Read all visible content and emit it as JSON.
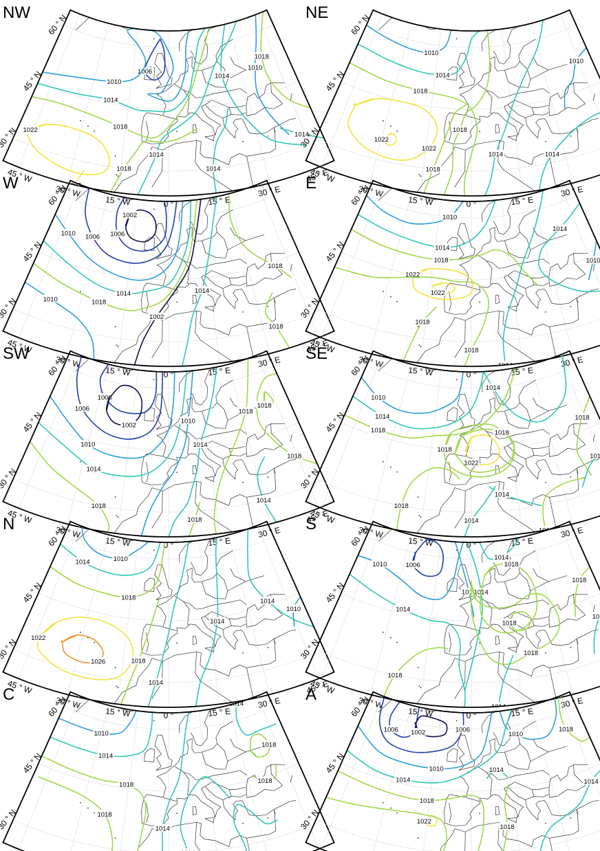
{
  "figure": {
    "panels": [
      {
        "label": "NW",
        "isobars": [
          {
            "text": "1006",
            "value": 1006
          },
          {
            "text": "1010",
            "value": 1010
          },
          {
            "text": "1014",
            "value": 1014
          },
          {
            "text": "1018",
            "value": 1018
          },
          {
            "text": "1022",
            "value": 1022
          },
          {
            "text": "1014",
            "value": 1014
          },
          {
            "text": "1018",
            "value": 1018
          },
          {
            "text": "1010",
            "value": 1010
          },
          {
            "text": "1014",
            "value": 1014
          },
          {
            "text": "1018",
            "value": 1018
          },
          {
            "text": "1014",
            "value": 1014
          },
          {
            "text": "1022",
            "value": 1022
          },
          {
            "text": "1014",
            "value": 1014
          }
        ]
      },
      {
        "label": "NE",
        "isobars": [
          {
            "text": "1010",
            "value": 1010
          },
          {
            "text": "1014",
            "value": 1014
          },
          {
            "text": "1018",
            "value": 1018
          },
          {
            "text": "1022",
            "value": 1022
          },
          {
            "text": "1018",
            "value": 1018
          },
          {
            "text": "1014",
            "value": 1014
          },
          {
            "text": "1010",
            "value": 1010
          },
          {
            "text": "1022",
            "value": 1022
          },
          {
            "text": "1018",
            "value": 1018
          },
          {
            "text": "1014",
            "value": 1014
          }
        ]
      },
      {
        "label": "W",
        "isobars": [
          {
            "text": "1006",
            "value": 1006
          },
          {
            "text": "1002",
            "value": 1002
          },
          {
            "text": "1006",
            "value": 1006
          },
          {
            "text": "1010",
            "value": 1010
          },
          {
            "text": "1014",
            "value": 1014
          },
          {
            "text": "1018",
            "value": 1018
          },
          {
            "text": "1010",
            "value": 1010
          },
          {
            "text": "1014",
            "value": 1014
          },
          {
            "text": "1002",
            "value": 1002
          },
          {
            "text": "1018",
            "value": 1018
          },
          {
            "text": "1018",
            "value": 1018
          }
        ]
      },
      {
        "label": "E",
        "isobars": [
          {
            "text": "1010",
            "value": 1010
          },
          {
            "text": "1014",
            "value": 1014
          },
          {
            "text": "1018",
            "value": 1018
          },
          {
            "text": "1022",
            "value": 1022
          },
          {
            "text": "1018",
            "value": 1018
          },
          {
            "text": "1014",
            "value": 1014
          },
          {
            "text": "1022",
            "value": 1022
          },
          {
            "text": "1014",
            "value": 1014
          },
          {
            "text": "1010",
            "value": 1010
          },
          {
            "text": "1018",
            "value": 1018
          }
        ]
      },
      {
        "label": "SW",
        "isobars": [
          {
            "text": "1006",
            "value": 1006
          },
          {
            "text": "1006",
            "value": 1006
          },
          {
            "text": "1002",
            "value": 1002
          },
          {
            "text": "1010",
            "value": 1010
          },
          {
            "text": "1014",
            "value": 1014
          },
          {
            "text": "1018",
            "value": 1018
          },
          {
            "text": "1010",
            "value": 1010
          },
          {
            "text": "1014",
            "value": 1014
          },
          {
            "text": "1018",
            "value": 1018
          },
          {
            "text": "1014",
            "value": 1014
          },
          {
            "text": "1018",
            "value": 1018
          },
          {
            "text": "1018",
            "value": 1018
          },
          {
            "text": "1018",
            "value": 1018
          }
        ]
      },
      {
        "label": "SE",
        "isobars": [
          {
            "text": "1010",
            "value": 1010
          },
          {
            "text": "1014",
            "value": 1014
          },
          {
            "text": "1018",
            "value": 1018
          },
          {
            "text": "1014",
            "value": 1014
          },
          {
            "text": "1018",
            "value": 1018
          },
          {
            "text": "1022",
            "value": 1022
          },
          {
            "text": "1018",
            "value": 1018
          },
          {
            "text": "1018",
            "value": 1018
          },
          {
            "text": "1014",
            "value": 1014
          },
          {
            "text": "1018",
            "value": 1018
          },
          {
            "text": "1018",
            "value": 1018
          },
          {
            "text": "1014",
            "value": 1014
          },
          {
            "text": "1014",
            "value": 1014
          }
        ]
      },
      {
        "label": "N",
        "isobars": [
          {
            "text": "1010",
            "value": 1010
          },
          {
            "text": "1014",
            "value": 1014
          },
          {
            "text": "1018",
            "value": 1018
          },
          {
            "text": "1022",
            "value": 1022
          },
          {
            "text": "1026",
            "value": 1026
          },
          {
            "text": "1018",
            "value": 1018
          },
          {
            "text": "1014",
            "value": 1014
          },
          {
            "text": "1014",
            "value": 1014
          },
          {
            "text": "1014",
            "value": 1014
          },
          {
            "text": "1010",
            "value": 1010
          }
        ]
      },
      {
        "label": "S",
        "isobars": [
          {
            "text": "1006",
            "value": 1006
          },
          {
            "text": "1010",
            "value": 1010
          },
          {
            "text": "1014",
            "value": 1014
          },
          {
            "text": "1018",
            "value": 1018
          },
          {
            "text": "1010",
            "value": 1010
          },
          {
            "text": "1014",
            "value": 1014
          },
          {
            "text": "1018",
            "value": 1018
          },
          {
            "text": "1014",
            "value": 1014
          },
          {
            "text": "1018",
            "value": 1018
          },
          {
            "text": "1018",
            "value": 1018
          },
          {
            "text": "1014",
            "value": 1014
          },
          {
            "text": "1018",
            "value": 1018
          },
          {
            "text": "1014",
            "value": 1014
          }
        ]
      },
      {
        "label": "C",
        "isobars": [
          {
            "text": "1010",
            "value": 1010
          },
          {
            "text": "1014",
            "value": 1014
          },
          {
            "text": "1018",
            "value": 1018
          },
          {
            "text": "1018",
            "value": 1018
          },
          {
            "text": "1014",
            "value": 1014
          },
          {
            "text": "1014",
            "value": 1014
          },
          {
            "text": "1014",
            "value": 1014
          },
          {
            "text": "1018",
            "value": 1018
          },
          {
            "text": "1018",
            "value": 1018
          },
          {
            "text": "1014",
            "value": 1014
          }
        ]
      },
      {
        "label": "A",
        "isobars": [
          {
            "text": "1006",
            "value": 1006
          },
          {
            "text": "1002",
            "value": 1002
          },
          {
            "text": "1006",
            "value": 1006
          },
          {
            "text": "1010",
            "value": 1010
          },
          {
            "text": "1010",
            "value": 1010
          },
          {
            "text": "1014",
            "value": 1014
          },
          {
            "text": "1014",
            "value": 1014
          },
          {
            "text": "1018",
            "value": 1018
          },
          {
            "text": "1022",
            "value": 1022
          },
          {
            "text": "1018",
            "value": 1018
          },
          {
            "text": "1018",
            "value": 1018
          },
          {
            "text": "1014",
            "value": 1014
          },
          {
            "text": "1018",
            "value": 1018
          }
        ]
      }
    ],
    "lat_labels": [
      {
        "text": "60 °  N",
        "lat": 60
      },
      {
        "text": "45 °  N",
        "lat": 45
      },
      {
        "text": "30 °  N",
        "lat": 30
      }
    ],
    "lon_labels": [
      {
        "text": "45 °  W",
        "lon": -45
      },
      {
        "text": "30 °  W",
        "lon": -30
      },
      {
        "text": "15 °  W",
        "lon": -15
      },
      {
        "text": "0 °",
        "lon": 0
      },
      {
        "text": "15 °  E",
        "lon": 15
      },
      {
        "text": "30 °  E",
        "lon": 30
      },
      {
        "text": "45 °  E",
        "lon": 45
      }
    ],
    "pressure_colors": {
      "1002": "#101050",
      "1006": "#1f3fa8",
      "1010": "#2c9fd8",
      "1014": "#2fc8b8",
      "1018": "#9fd848",
      "1022": "#f2e43a",
      "1026": "#f0922c",
      "1030": "#d62a1e",
      "1034": "#7a0c0c"
    }
  }
}
